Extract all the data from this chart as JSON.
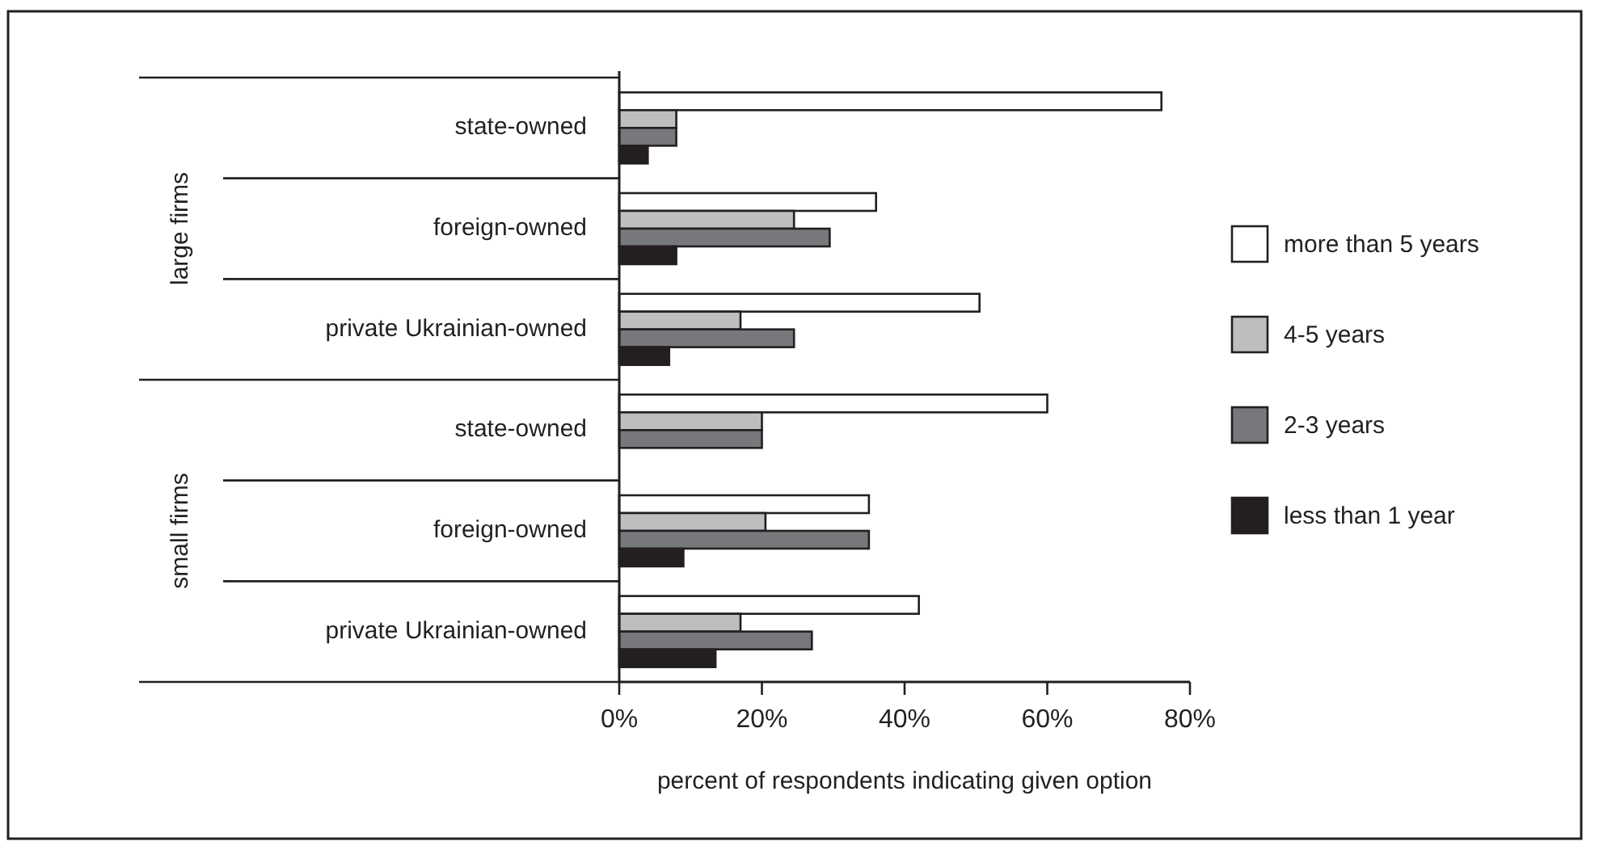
{
  "chart_data": {
    "type": "bar",
    "orientation": "horizontal",
    "xlabel": "percent of respondents indicating given option",
    "categories": [
      "state-owned",
      "foreign-owned",
      "private Ukrainian-owned",
      "state-owned",
      "foreign-owned",
      "private Ukrainian-owned"
    ],
    "annotations": [
      "large firms",
      "small firms"
    ],
    "series": [
      {
        "name": "more than 5 years",
        "color": "#ffffff",
        "values": [
          76,
          36,
          50.5,
          60,
          35,
          42
        ]
      },
      {
        "name": "4-5 years",
        "color": "#bdbec0",
        "values": [
          8,
          24.5,
          17,
          20,
          20.5,
          17
        ]
      },
      {
        "name": "2-3 years",
        "color": "#77787b",
        "values": [
          8,
          29.5,
          24.5,
          20,
          35,
          27
        ]
      },
      {
        "name": "less than 1 year",
        "color": "#231f20",
        "values": [
          4,
          8,
          7,
          null,
          9,
          13.5
        ]
      }
    ],
    "xlim": [
      0,
      80
    ],
    "xticks": [
      {
        "value": 0,
        "label": "0%"
      },
      {
        "value": 20,
        "label": "20%"
      },
      {
        "value": 40,
        "label": "40%"
      },
      {
        "value": 60,
        "label": "60%"
      },
      {
        "value": 80,
        "label": "80%"
      }
    ],
    "grid": false,
    "legend": "right"
  }
}
